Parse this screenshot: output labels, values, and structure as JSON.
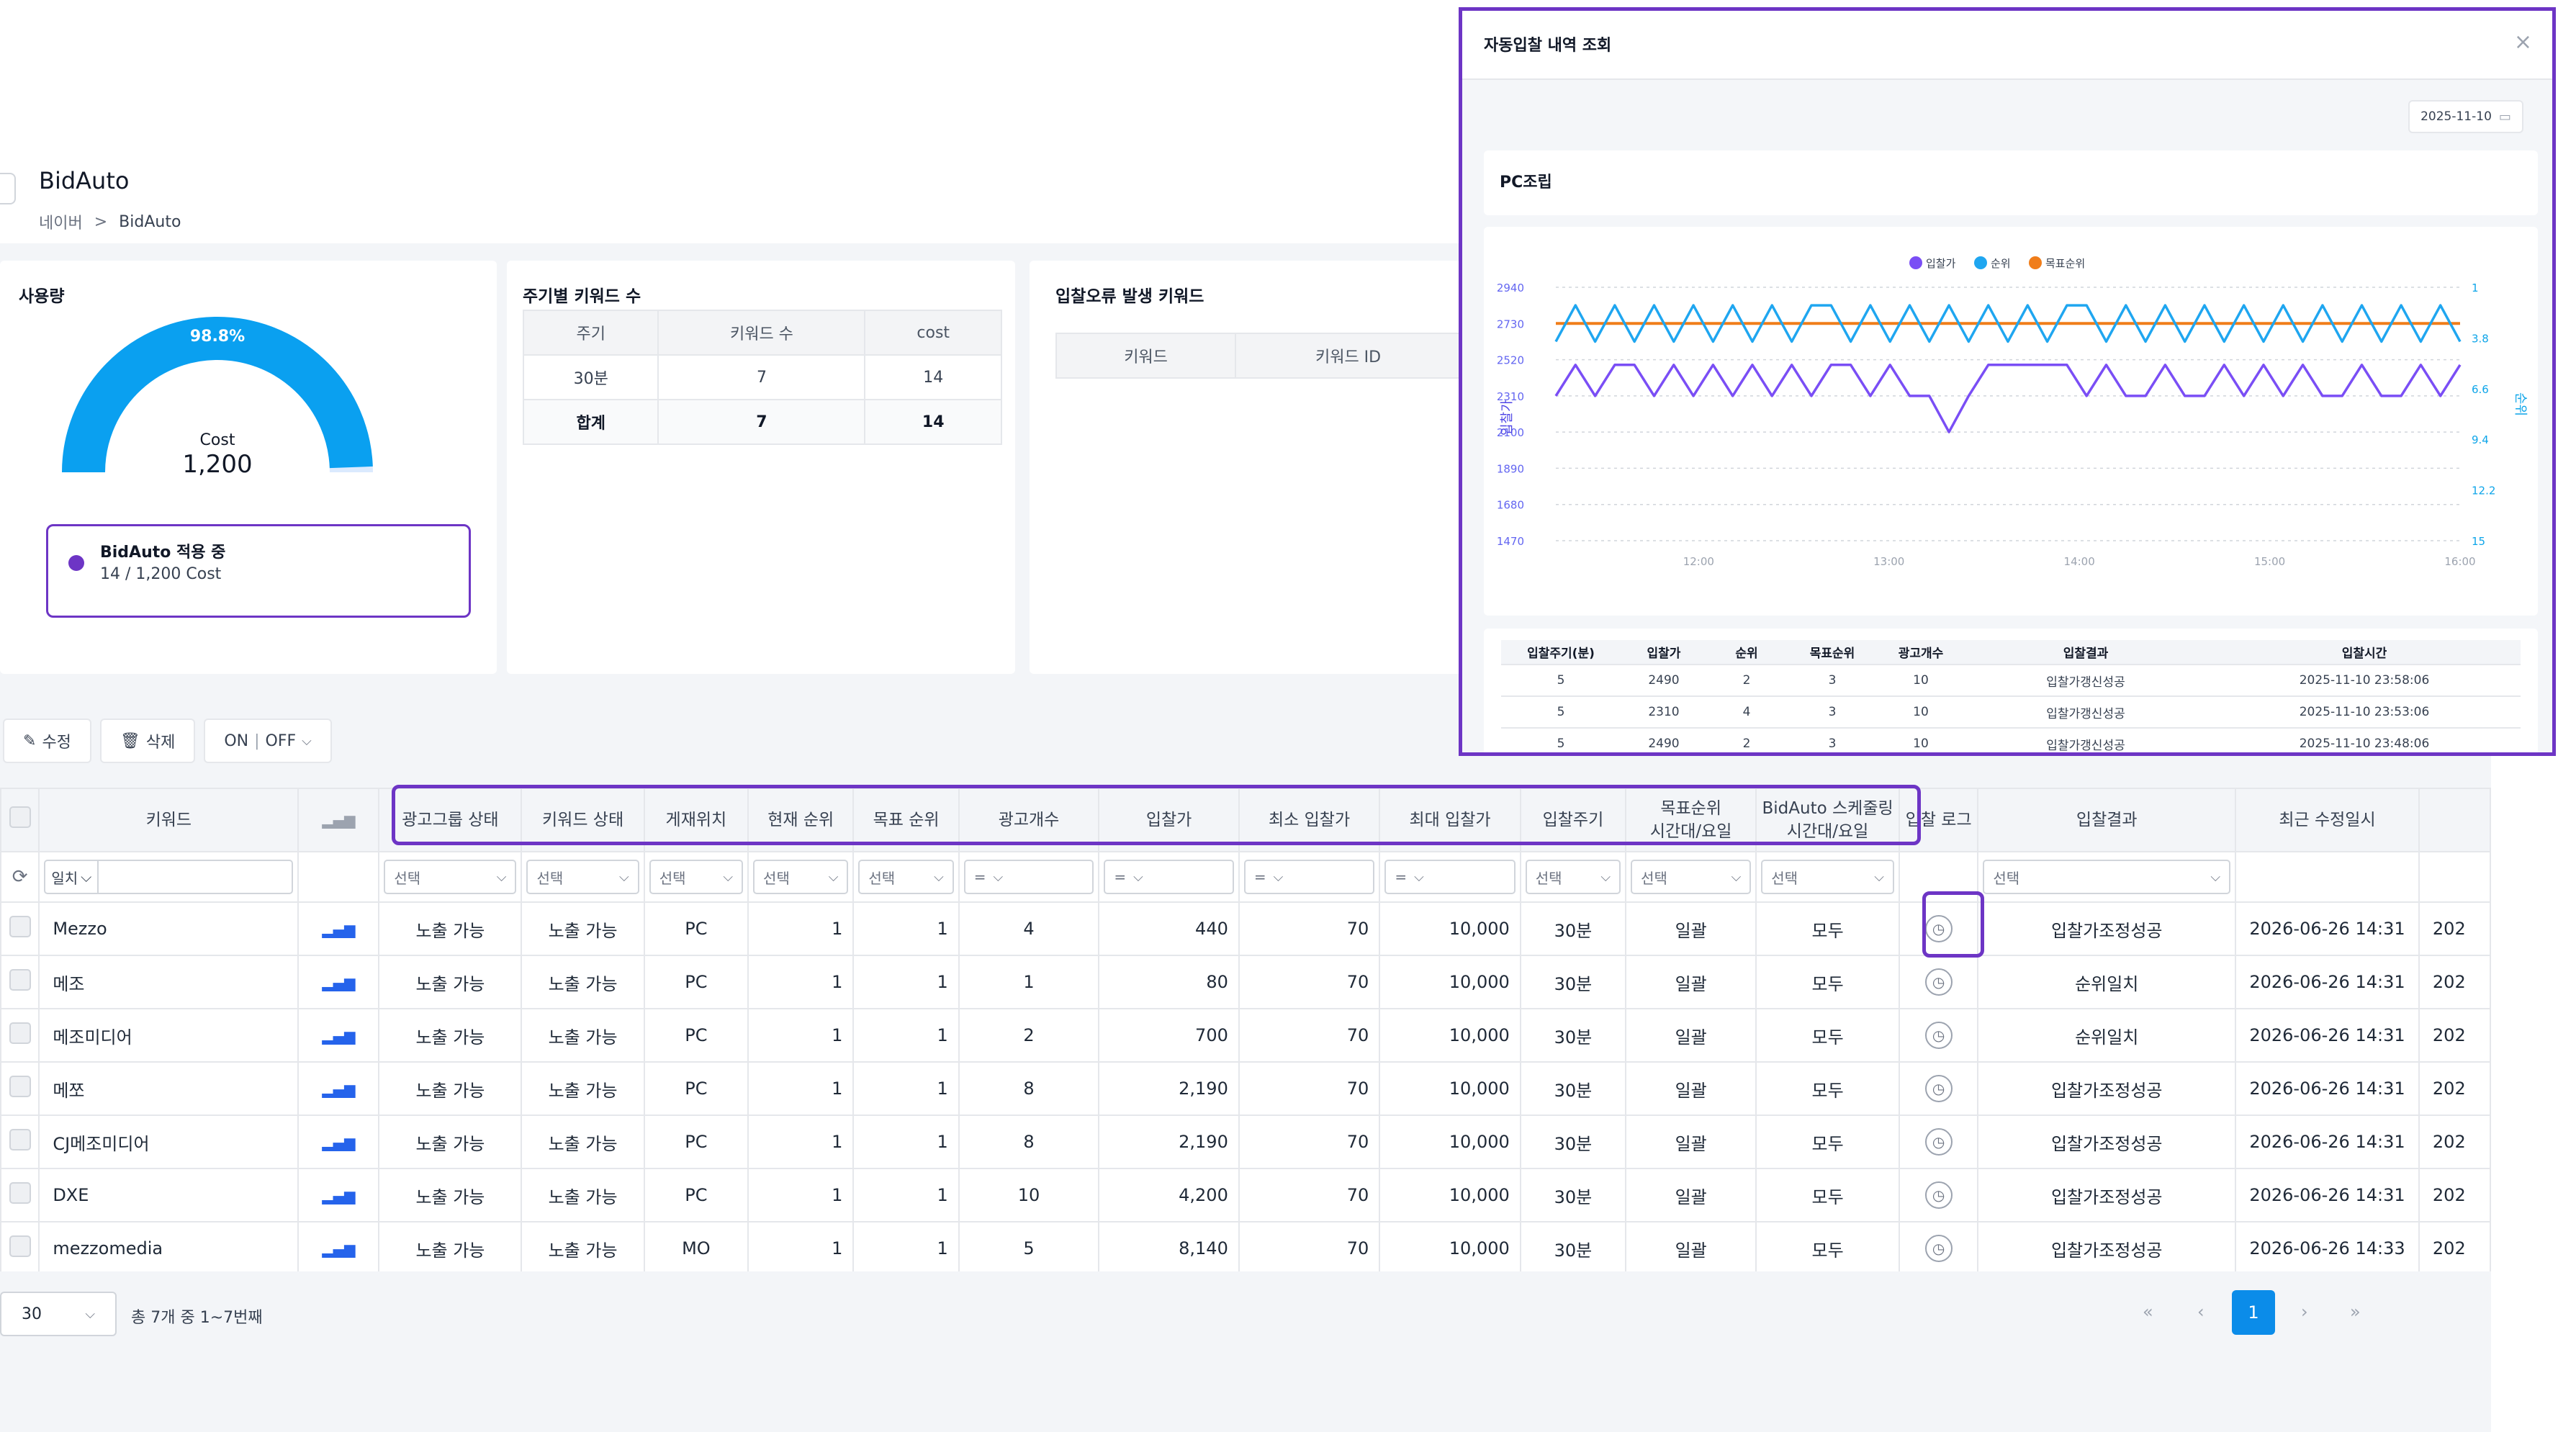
{
  "page": {
    "title": "BidAuto",
    "breadcrumb": [
      "네이버",
      "BidAuto"
    ],
    "breadcrumb_sep": ">"
  },
  "usage": {
    "title": "사용량",
    "percent": "98.8%",
    "percent_value": 98.8,
    "center_label": "Cost",
    "center_value": "1,200",
    "legend_title": "BidAuto 적용 중",
    "legend_sub": "14 / 1,200 Cost",
    "colors": {
      "gauge": "#0aa0f0",
      "legend": "#6d35c5"
    }
  },
  "cycle_keywords": {
    "title": "주기별 키워드 수",
    "headers": [
      "주기",
      "키워드 수",
      "cost"
    ],
    "rows": [
      [
        "30분",
        "7",
        "14"
      ]
    ],
    "total": [
      "합계",
      "7",
      "14"
    ]
  },
  "error_keywords": {
    "title": "입찰오류 발생 키워드",
    "headers": [
      "키워드",
      "키워드 ID"
    ]
  },
  "toolbar": {
    "edit": "수정",
    "delete": "삭제",
    "on": "ON",
    "off": "OFF",
    "sep": "|"
  },
  "grid": {
    "headers": [
      "키워드",
      "광고그룹 상태",
      "키워드 상태",
      "게재위치",
      "현재 순위",
      "목표 순위",
      "광고개수",
      "입찰가",
      "최소 입찰가",
      "최대 입찰가",
      "입찰주기",
      "목표순위\n시간대/요일",
      "BidAuto 스케줄링\n시간대/요일",
      "입찰 로그",
      "입찰결과",
      "최근 수정일시"
    ],
    "filters": {
      "match": "일치",
      "select": "선택",
      "eq": "="
    },
    "rows": [
      {
        "keyword": "Mezzo",
        "group": "노출 가능",
        "status": "노출 가능",
        "pos": "PC",
        "cur": "1",
        "target": "1",
        "ads": "4",
        "bid": "440",
        "min": "70",
        "max": "10,000",
        "cycle": "30분",
        "trank": "일괄",
        "sched": "모두",
        "result": "입찰가조정성공",
        "updated": "2026-06-26 14:31",
        "next": "202"
      },
      {
        "keyword": "메조",
        "group": "노출 가능",
        "status": "노출 가능",
        "pos": "PC",
        "cur": "1",
        "target": "1",
        "ads": "1",
        "bid": "80",
        "min": "70",
        "max": "10,000",
        "cycle": "30분",
        "trank": "일괄",
        "sched": "모두",
        "result": "순위일치",
        "updated": "2026-06-26 14:31",
        "next": "202"
      },
      {
        "keyword": "메조미디어",
        "group": "노출 가능",
        "status": "노출 가능",
        "pos": "PC",
        "cur": "1",
        "target": "1",
        "ads": "2",
        "bid": "700",
        "min": "70",
        "max": "10,000",
        "cycle": "30분",
        "trank": "일괄",
        "sched": "모두",
        "result": "순위일치",
        "updated": "2026-06-26 14:31",
        "next": "202"
      },
      {
        "keyword": "메쪼",
        "group": "노출 가능",
        "status": "노출 가능",
        "pos": "PC",
        "cur": "1",
        "target": "1",
        "ads": "8",
        "bid": "2,190",
        "min": "70",
        "max": "10,000",
        "cycle": "30분",
        "trank": "일괄",
        "sched": "모두",
        "result": "입찰가조정성공",
        "updated": "2026-06-26 14:31",
        "next": "202"
      },
      {
        "keyword": "CJ메조미디어",
        "group": "노출 가능",
        "status": "노출 가능",
        "pos": "PC",
        "cur": "1",
        "target": "1",
        "ads": "8",
        "bid": "2,190",
        "min": "70",
        "max": "10,000",
        "cycle": "30분",
        "trank": "일괄",
        "sched": "모두",
        "result": "입찰가조정성공",
        "updated": "2026-06-26 14:31",
        "next": "202"
      },
      {
        "keyword": "DXE",
        "group": "노출 가능",
        "status": "노출 가능",
        "pos": "PC",
        "cur": "1",
        "target": "1",
        "ads": "10",
        "bid": "4,200",
        "min": "70",
        "max": "10,000",
        "cycle": "30분",
        "trank": "일괄",
        "sched": "모두",
        "result": "입찰가조정성공",
        "updated": "2026-06-26 14:31",
        "next": "202"
      },
      {
        "keyword": "mezzomedia",
        "group": "노출 가능",
        "status": "노출 가능",
        "pos": "MO",
        "cur": "1",
        "target": "1",
        "ads": "5",
        "bid": "8,140",
        "min": "70",
        "max": "10,000",
        "cycle": "30분",
        "trank": "일괄",
        "sched": "모두",
        "result": "입찰가조정성공",
        "updated": "2026-06-26 14:33",
        "next": "202"
      }
    ]
  },
  "pagination": {
    "page_size": "30",
    "info": "총 7개 중 1~7번째",
    "current": "1",
    "first": "«",
    "prev": "‹",
    "next": "›",
    "last": "»"
  },
  "modal": {
    "title": "자동입찰 내역 조회",
    "close": "×",
    "date": "2025-11-10",
    "keyword": "PC조립",
    "table_headers": [
      "입찰주기(분)",
      "입찰가",
      "순위",
      "목표순위",
      "광고개수",
      "입찰결과",
      "입찰시간"
    ],
    "table_rows": [
      [
        "5",
        "2490",
        "2",
        "3",
        "10",
        "입찰가갱신성공",
        "2025-11-10 23:58:06"
      ],
      [
        "5",
        "2310",
        "4",
        "3",
        "10",
        "입찰가갱신성공",
        "2025-11-10 23:53:06"
      ],
      [
        "5",
        "2490",
        "2",
        "3",
        "10",
        "입찰가갱신성공",
        "2025-11-10 23:48:06"
      ]
    ]
  },
  "chart_data": {
    "type": "line",
    "legend_position": "top-center",
    "x_ticks": [
      "12:00",
      "13:00",
      "14:00",
      "15:00",
      "16:00"
    ],
    "x_range": [
      11.25,
      16.0
    ],
    "ylabel_left": "입찰가",
    "ylabel_right": "순위",
    "yleft_ticks": [
      2940,
      2730,
      2520,
      2310,
      2100,
      1890,
      1680,
      1470
    ],
    "yleft_range": [
      1470,
      2940
    ],
    "yright_ticks": [
      1,
      3.8,
      6.6,
      9.4,
      12.2,
      15
    ],
    "yright_range": [
      1,
      15
    ],
    "yright_inverted": true,
    "grid": true,
    "series": [
      {
        "name": "입찰가",
        "color": "#7a4ef5",
        "axis": "left",
        "values": [
          2310,
          2490,
          2310,
          2490,
          2490,
          2310,
          2490,
          2310,
          2490,
          2310,
          2490,
          2310,
          2490,
          2310,
          2490,
          2490,
          2310,
          2490,
          2310,
          2310,
          2100,
          2310,
          2490,
          2490,
          2490,
          2490,
          2490,
          2310,
          2490,
          2310,
          2310,
          2490,
          2310,
          2310,
          2490,
          2310,
          2490,
          2310,
          2490,
          2310,
          2310,
          2490,
          2310,
          2310,
          2490,
          2310,
          2490
        ]
      },
      {
        "name": "순위",
        "color": "#1fa6f0",
        "axis": "right",
        "values": [
          4,
          2,
          4,
          2,
          4,
          2,
          4,
          2,
          4,
          2,
          4,
          2,
          4,
          2,
          2,
          4,
          2,
          4,
          2,
          4,
          2,
          4,
          2,
          4,
          2,
          4,
          2,
          2,
          4,
          2,
          4,
          2,
          4,
          2,
          4,
          2,
          4,
          2,
          4,
          2,
          4,
          2,
          4,
          2,
          4,
          2,
          4
        ]
      },
      {
        "name": "목표순위",
        "color": "#f07d1a",
        "axis": "right",
        "values": [
          3,
          3,
          3,
          3,
          3,
          3,
          3,
          3,
          3,
          3,
          3,
          3,
          3,
          3,
          3,
          3,
          3,
          3,
          3,
          3,
          3,
          3,
          3,
          3,
          3,
          3,
          3,
          3,
          3,
          3,
          3,
          3,
          3,
          3,
          3,
          3,
          3,
          3,
          3,
          3,
          3,
          3,
          3,
          3,
          3,
          3,
          3
        ]
      }
    ]
  }
}
